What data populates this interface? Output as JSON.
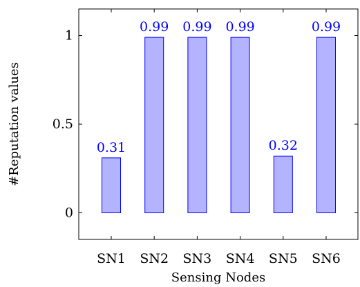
{
  "chart_data": {
    "type": "bar",
    "title": "",
    "xlabel": "Sensing Nodes",
    "ylabel": "#Reputation values",
    "categories": [
      "SN1",
      "SN2",
      "SN3",
      "SN4",
      "SN5",
      "SN6"
    ],
    "values": [
      0.31,
      0.99,
      0.99,
      0.99,
      0.32,
      0.99
    ],
    "data_labels": [
      "0.31",
      "0.99",
      "0.99",
      "0.99",
      "0.32",
      "0.99"
    ],
    "ylim": [
      -0.15,
      1.15
    ],
    "yticks": [
      0,
      0.5,
      1
    ],
    "ytick_labels": [
      "0",
      "0.5",
      "1"
    ],
    "grid": false,
    "legend": "none",
    "colors": {
      "bar_fill": "#b3b3ff",
      "bar_stroke": "#0000ff",
      "data_label": "#0000ff",
      "axis": "#000000"
    }
  }
}
